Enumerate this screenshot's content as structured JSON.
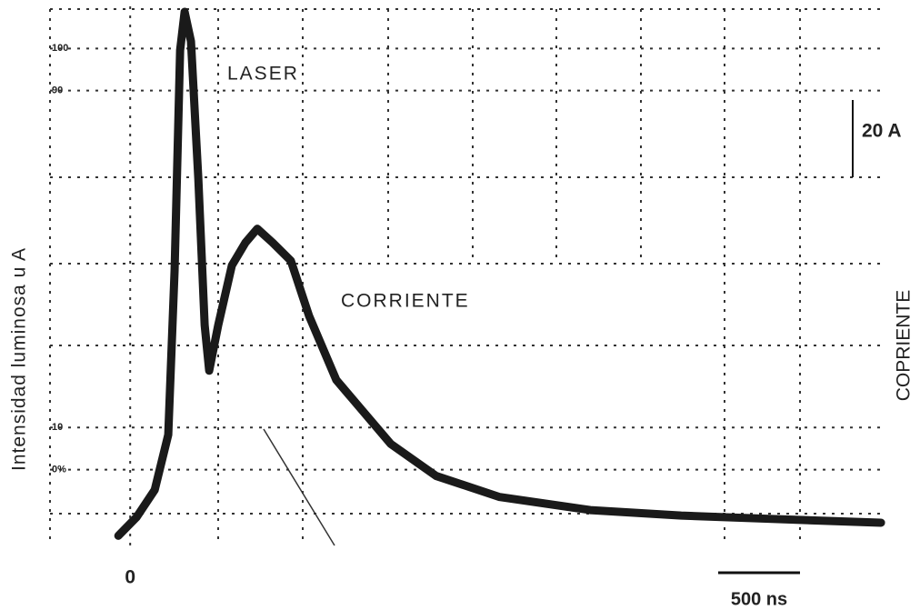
{
  "chart_data": {
    "type": "line",
    "y_label": "Intensidad luminosa u A",
    "annotations": {
      "laser": "LASER",
      "corriente": "CORRIENTE",
      "right_label": "COPRIENTE",
      "scale_current": "20 A",
      "scale_time": "500 ns"
    },
    "x": [
      -71,
      38,
      147,
      228,
      266,
      299,
      326,
      364,
      408,
      446,
      473,
      527,
      609,
      690,
      761,
      853,
      962,
      1071,
      1234,
      1397,
      1560,
      1832,
      2212,
      2755,
      3299,
      3842,
      4495
    ],
    "series": [
      {
        "color": "#1a1a1a",
        "values": [
          -15.7,
          -11.3,
          -4.8,
          8.3,
          47.4,
          99.6,
          108.7,
          101.7,
          69.1,
          34.3,
          23.5,
          34.3,
          48.5,
          53.9,
          57.2,
          53.9,
          49.6,
          36.5,
          21.3,
          13.7,
          6.1,
          -1.5,
          -6.5,
          -9.6,
          -10.9,
          -11.7,
          -12.6
        ]
      }
    ],
    "xlim": [
      -480,
      4500
    ],
    "ylim": [
      -18,
      110
    ],
    "xticks": [
      0
    ],
    "yticks": [
      100,
      90,
      10,
      {
        "value": 0,
        "label": "0%"
      }
    ]
  }
}
